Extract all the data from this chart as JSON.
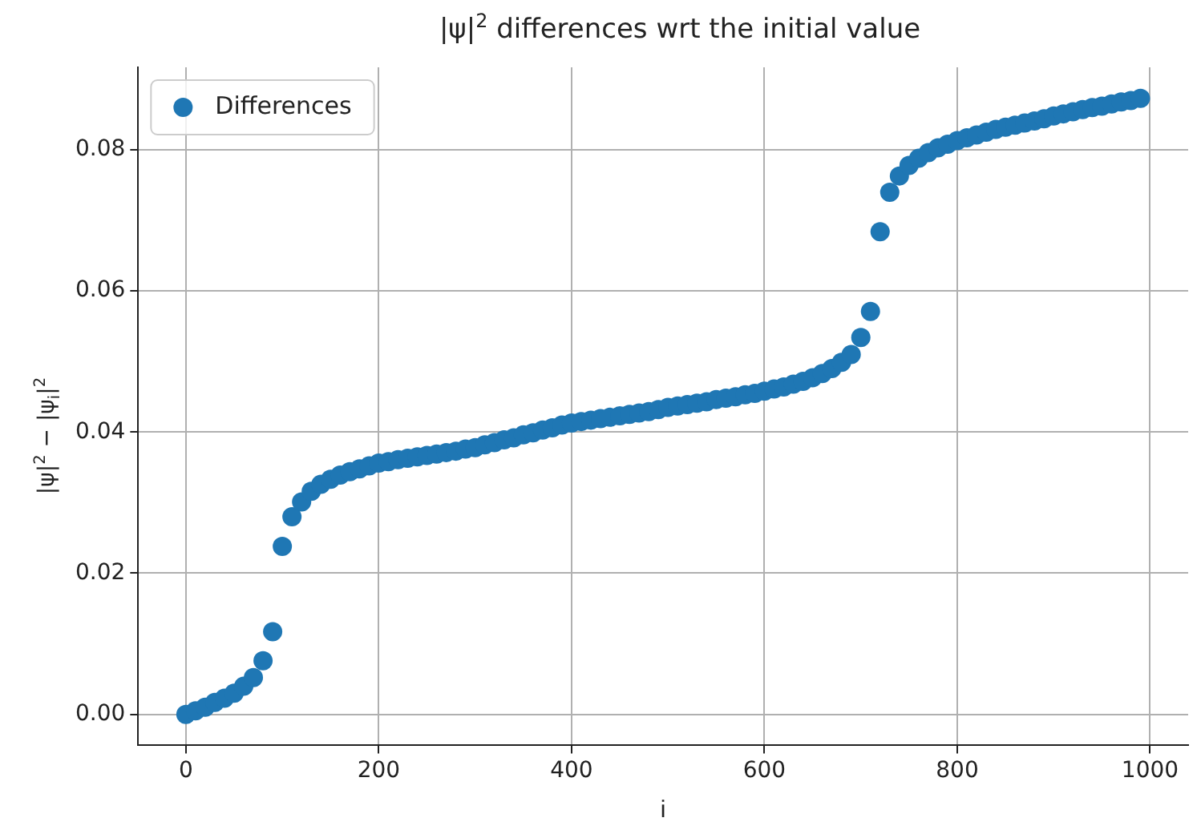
{
  "chart_data": {
    "type": "scatter",
    "title": "|ψ|$^{2}$ differences wrt the initial value",
    "xlabel": "i",
    "ylabel": "|ψ|$^{2}$ − |ψ$_{i}$|$^{2}$",
    "x": [
      0,
      10,
      20,
      30,
      40,
      50,
      60,
      70,
      80,
      90,
      100,
      110,
      120,
      130,
      140,
      150,
      160,
      170,
      180,
      190,
      200,
      210,
      220,
      230,
      240,
      250,
      260,
      270,
      280,
      290,
      300,
      310,
      320,
      330,
      340,
      350,
      360,
      370,
      380,
      390,
      400,
      410,
      420,
      430,
      440,
      450,
      460,
      470,
      480,
      490,
      500,
      510,
      520,
      530,
      540,
      550,
      560,
      570,
      580,
      590,
      600,
      610,
      620,
      630,
      640,
      650,
      660,
      670,
      680,
      690,
      700,
      710,
      720,
      730,
      740,
      750,
      760,
      770,
      780,
      790,
      800,
      810,
      820,
      830,
      840,
      850,
      860,
      870,
      880,
      890,
      900,
      910,
      920,
      930,
      940,
      950,
      960,
      970,
      980,
      990
    ],
    "series": [
      {
        "name": "Differences",
        "color": "#1f77b4",
        "values": [
          0,
          0.0005,
          0.001,
          0.0017,
          0.0023,
          0.003,
          0.004,
          0.0052,
          0.0076,
          0.0117,
          0.0238,
          0.028,
          0.0301,
          0.0316,
          0.0326,
          0.0333,
          0.0339,
          0.0344,
          0.0348,
          0.0352,
          0.0356,
          0.0358,
          0.0361,
          0.0363,
          0.0365,
          0.0367,
          0.0369,
          0.0371,
          0.0373,
          0.0376,
          0.0378,
          0.0382,
          0.0385,
          0.0389,
          0.0392,
          0.0396,
          0.0399,
          0.0403,
          0.0406,
          0.041,
          0.0413,
          0.0415,
          0.0417,
          0.0419,
          0.0421,
          0.0423,
          0.0425,
          0.0427,
          0.0429,
          0.0432,
          0.0435,
          0.0437,
          0.0439,
          0.0441,
          0.0443,
          0.0446,
          0.0448,
          0.045,
          0.0453,
          0.0455,
          0.0458,
          0.0461,
          0.0464,
          0.0468,
          0.0472,
          0.0477,
          0.0483,
          0.049,
          0.0499,
          0.051,
          0.0534,
          0.0571,
          0.0684,
          0.074,
          0.0763,
          0.0778,
          0.0788,
          0.0796,
          0.0803,
          0.0808,
          0.0813,
          0.0817,
          0.0821,
          0.0825,
          0.0829,
          0.0832,
          0.0835,
          0.0838,
          0.0841,
          0.0844,
          0.0848,
          0.0851,
          0.0854,
          0.0857,
          0.086,
          0.0862,
          0.0865,
          0.0868,
          0.087,
          0.0873
        ]
      }
    ],
    "xlim": [
      -49.5,
      1039.5
    ],
    "xticks": [
      0,
      200,
      400,
      600,
      800,
      1000
    ],
    "ylim": [
      -0.0044,
      0.0917
    ],
    "yticks": [
      {
        "value": 0,
        "label": "0.00"
      },
      {
        "value": 0.02,
        "label": "0.02"
      },
      {
        "value": 0.04,
        "label": "0.04"
      },
      {
        "value": 0.06,
        "label": "0.06"
      },
      {
        "value": 0.08,
        "label": "0.08"
      }
    ],
    "grid": true,
    "legend": "top left",
    "marker": "circle"
  }
}
